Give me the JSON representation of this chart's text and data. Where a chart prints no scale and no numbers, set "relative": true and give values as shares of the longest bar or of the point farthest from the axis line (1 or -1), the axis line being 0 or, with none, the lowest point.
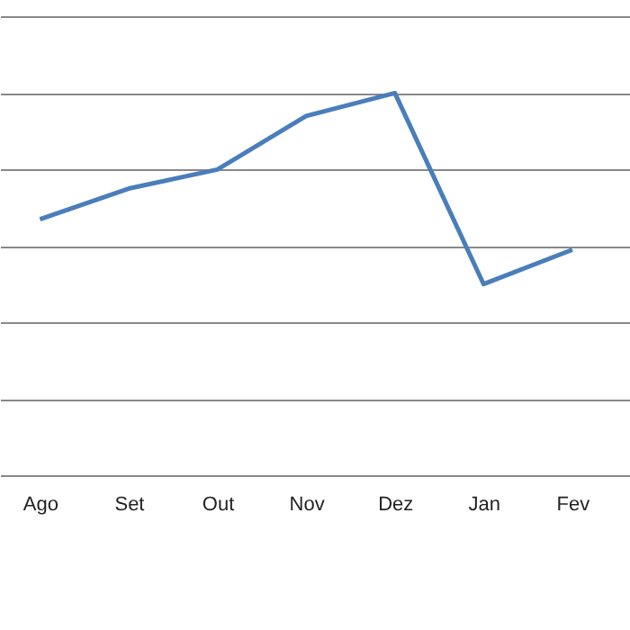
{
  "chart_data": {
    "type": "line",
    "relative": true,
    "categories": [
      "Ago",
      "Set",
      "Out",
      "Nov",
      "Dez",
      "Jan",
      "Fev"
    ],
    "series": [
      {
        "color": "#4a7ebb",
        "values": [
          0.67,
          0.75,
          0.8,
          0.94,
          1,
          0.5,
          0.59
        ]
      }
    ],
    "grid": "y",
    "marker": "none",
    "line_style": "solid",
    "legend": false
  }
}
